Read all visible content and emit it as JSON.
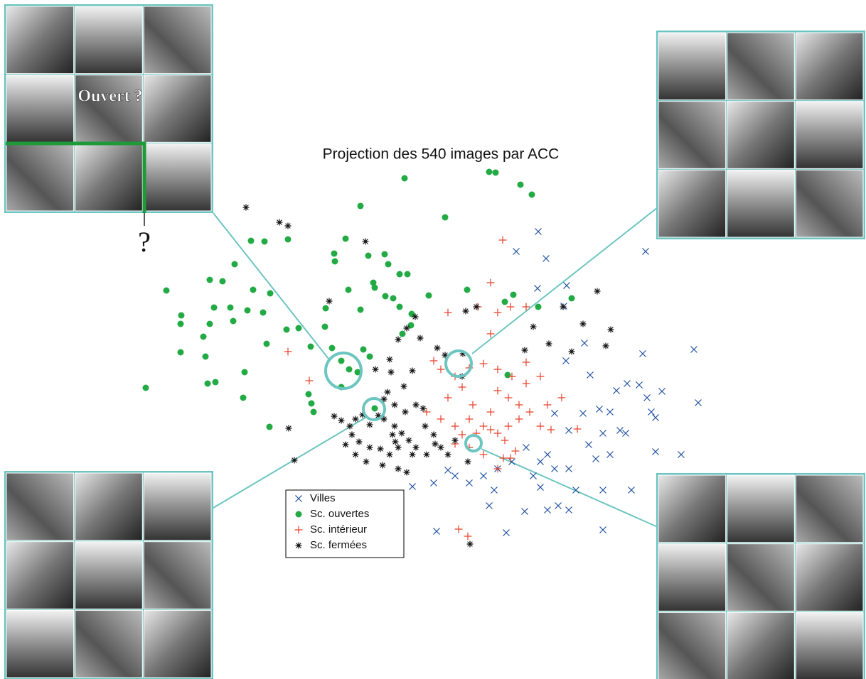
{
  "chart_data": {
    "type": "scatter",
    "title": "Projection des 540 images par ACC",
    "annotations": [
      "Ouvert ?",
      "?"
    ],
    "xlim": [
      180,
      1020
    ],
    "ylim": [
      800,
      200
    ],
    "series": [
      {
        "name": "Villes",
        "color": "#1f4fa0",
        "marker": "x",
        "x": [
          757,
          726,
          768,
          908,
          797,
          756,
          793,
          822,
          904,
          976,
          796,
          830,
          867,
          882,
          899,
          931,
          910,
          982,
          820,
          843,
          858,
          916,
          922,
          780,
          800,
          848,
          872,
          880,
          828,
          838,
          858,
          922,
          958,
          740,
          760,
          780,
          800,
          770,
          720,
          700,
          680,
          660,
          640,
          630,
          610,
          695,
          760,
          810,
          848,
          888,
          738,
          770,
          785,
          800,
          848,
          688,
          614,
          712,
          580,
          750
        ],
        "values": [
          326,
          354,
          364,
          354,
          402,
          406,
          431,
          483,
          498,
          492,
          508,
          528,
          550,
          540,
          542,
          551,
          560,
          567,
          582,
          576,
          580,
          580,
          588,
          582,
          606,
          610,
          606,
          610,
          626,
          646,
          640,
          636,
          640,
          630,
          650,
          660,
          660,
          640,
          650,
          660,
          670,
          680,
          670,
          662,
          680,
          690,
          686,
          690,
          690,
          690,
          720,
          718,
          712,
          718,
          746,
          712,
          748,
          750,
          685,
          670
        ]
      },
      {
        "name": "Sc. ouvertes",
        "color": "#22aa44",
        "marker": "dot",
        "x": [
          688,
          697,
          732,
          748,
          569,
          507,
          626,
          353,
          372,
          405,
          486,
          518,
          470,
          471,
          541,
          330,
          546,
          562,
          573,
          295,
          313,
          234,
          380,
          356,
          525,
          527,
          490,
          542,
          553,
          603,
          657,
          722,
          710,
          804,
          757,
          301,
          324,
          348,
          370,
          458,
          507,
          562,
          579,
          255,
          254,
          328,
          295,
          403,
          420,
          457,
          578,
          566,
          286,
          375,
          254,
          289,
          437,
          467,
          511,
          520,
          491,
          503,
          480,
          344,
          303,
          292,
          205,
          434,
          480,
          438,
          441,
          342,
          379,
          714,
          527
        ],
        "values": [
          242,
          243,
          260,
          274,
          251,
          290,
          306,
          339,
          340,
          337,
          336,
          360,
          357,
          368,
          358,
          372,
          372,
          386,
          386,
          394,
          396,
          409,
          413,
          408,
          398,
          405,
          408,
          417,
          420,
          416,
          408,
          415,
          425,
          420,
          432,
          433,
          433,
          437,
          440,
          434,
          436,
          432,
          442,
          444,
          456,
          452,
          456,
          464,
          462,
          460,
          458,
          470,
          474,
          484,
          496,
          502,
          488,
          490,
          492,
          502,
          520,
          524,
          508,
          524,
          538,
          540,
          546,
          555,
          545,
          568,
          580,
          560,
          601,
          528,
          575
        ]
      },
      {
        "name": "Sc. intérieur",
        "color": "#e8402a",
        "marker": "plus",
        "x": [
          707,
          690,
          672,
          630,
          700,
          718,
          740,
          405,
          435,
          610,
          620,
          640,
          660,
          680,
          700,
          720,
          740,
          760,
          700,
          715,
          730,
          745,
          600,
          620,
          640,
          660,
          680,
          700,
          715,
          730,
          650,
          670,
          690,
          710,
          725,
          640,
          660,
          680,
          700,
          770,
          790,
          760,
          775,
          690,
          665,
          708,
          812,
          645,
          658,
          630,
          650,
          690,
          740,
          718
        ],
        "values": [
          338,
          398,
          432,
          440,
          440,
          432,
          432,
          495,
          536,
          508,
          520,
          530,
          518,
          512,
          520,
          530,
          540,
          530,
          550,
          560,
          570,
          580,
          580,
          590,
          600,
          590,
          600,
          610,
          600,
          590,
          612,
          610,
          605,
          620,
          635,
          625,
          630,
          640,
          660,
          570,
          560,
          600,
          605,
          580,
          570,
          645,
          604,
          745,
          755,
          560,
          545,
          470,
          510,
          645
        ]
      },
      {
        "name": "Sc. fermées",
        "color": "#111111",
        "marker": "star",
        "x": [
          346,
          393,
          405,
          514,
          463,
          584,
          655,
          670,
          591,
          615,
          651,
          738,
          750,
          772,
          804,
          820,
          859,
          852,
          840,
          792,
          548,
          560,
          572,
          550,
          528,
          580,
          568,
          545,
          470,
          480,
          492,
          500,
          510,
          520,
          540,
          555,
          565,
          575,
          585,
          598,
          610,
          620,
          630,
          640,
          552,
          556,
          560,
          548,
          535,
          520,
          505,
          495,
          486,
          500,
          515,
          538,
          560,
          572,
          580,
          595,
          585,
          570,
          555,
          540,
          532,
          600,
          612,
          406,
          414,
          658,
          661,
          650,
          626
        ],
        "values": [
          292,
          313,
          318,
          340,
          424,
          446,
          438,
          432,
          476,
          490,
          498,
          493,
          460,
          484,
          495,
          456,
          464,
          487,
          410,
          432,
          506,
          478,
          462,
          524,
          520,
          522,
          544,
          552,
          586,
          592,
          600,
          590,
          584,
          598,
          590,
          600,
          610,
          620,
          630,
          600,
          612,
          630,
          640,
          620,
          612,
          622,
          630,
          640,
          632,
          630,
          622,
          612,
          626,
          640,
          650,
          655,
          660,
          665,
          640,
          575,
          570,
          580,
          570,
          562,
          585,
          640,
          625,
          603,
          648,
          650,
          766,
          530,
          500
        ]
      }
    ]
  }
}
